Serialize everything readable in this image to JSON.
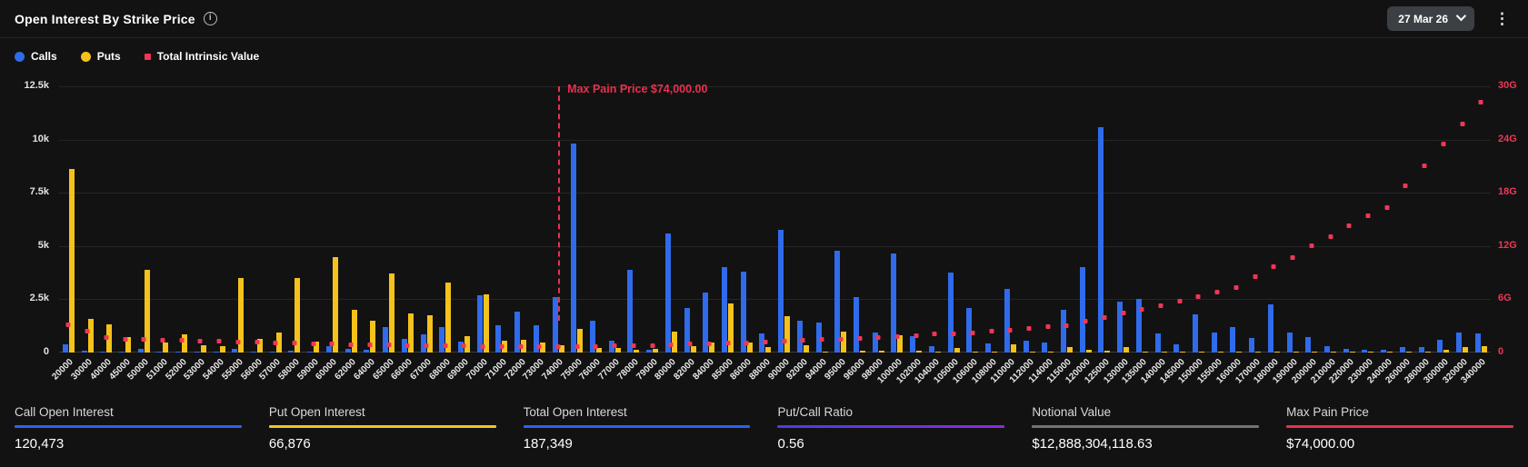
{
  "header": {
    "title": "Open Interest By Strike Price",
    "expiry_selected": "27 Mar 26"
  },
  "legend": [
    {
      "label": "Calls",
      "color": "#2f6beb",
      "shape": "circle"
    },
    {
      "label": "Puts",
      "color": "#f5c21b",
      "shape": "circle"
    },
    {
      "label": "Total Intrinsic Value",
      "color": "#ef3755",
      "shape": "square"
    }
  ],
  "chart_data": {
    "type": "bar",
    "title": "Open Interest By Strike Price",
    "categories": [
      "20000",
      "30000",
      "40000",
      "45000",
      "50000",
      "51000",
      "52000",
      "53000",
      "54000",
      "55000",
      "56000",
      "57000",
      "58000",
      "59000",
      "60000",
      "62000",
      "64000",
      "65000",
      "66000",
      "67000",
      "68000",
      "69000",
      "70000",
      "71000",
      "72000",
      "73000",
      "74000",
      "75000",
      "76000",
      "77000",
      "78000",
      "79000",
      "80000",
      "82000",
      "84000",
      "85000",
      "86000",
      "88000",
      "90000",
      "92000",
      "94000",
      "95000",
      "96000",
      "98000",
      "100000",
      "102000",
      "104000",
      "105000",
      "106000",
      "108000",
      "110000",
      "112000",
      "114000",
      "115000",
      "120000",
      "125000",
      "130000",
      "135000",
      "140000",
      "145000",
      "150000",
      "155000",
      "160000",
      "170000",
      "180000",
      "190000",
      "200000",
      "210000",
      "220000",
      "230000",
      "240000",
      "260000",
      "280000",
      "300000",
      "320000",
      "340000"
    ],
    "series": [
      {
        "name": "Calls",
        "type": "bar",
        "axis": "left",
        "color": "#2f6beb",
        "values": [
          400,
          100,
          50,
          60,
          150,
          30,
          40,
          30,
          40,
          150,
          50,
          60,
          100,
          40,
          300,
          150,
          120,
          1200,
          640,
          840,
          1200,
          500,
          2670,
          1290,
          1930,
          1290,
          2600,
          9800,
          1500,
          560,
          3900,
          130,
          5600,
          2100,
          2800,
          4000,
          3800,
          890,
          5770,
          1500,
          1410,
          4800,
          2600,
          930,
          4640,
          770,
          310,
          3770,
          2100,
          410,
          2990,
          560,
          460,
          1990,
          3990,
          10600,
          2400,
          2500,
          900,
          400,
          1800,
          960,
          1200,
          700,
          2250,
          920,
          740,
          310,
          170,
          130,
          140,
          260,
          260,
          590,
          940,
          900
        ]
      },
      {
        "name": "Puts",
        "type": "bar",
        "axis": "left",
        "color": "#f5c21b",
        "values": [
          8600,
          1580,
          1330,
          730,
          3900,
          470,
          860,
          360,
          320,
          3500,
          660,
          950,
          3500,
          500,
          4500,
          2000,
          1500,
          3700,
          1840,
          1740,
          3270,
          770,
          2740,
          570,
          600,
          460,
          360,
          1130,
          200,
          200,
          130,
          150,
          1000,
          310,
          490,
          2300,
          460,
          270,
          1700,
          360,
          60,
          1000,
          100,
          100,
          800,
          100,
          50,
          200,
          50,
          50,
          400,
          50,
          50,
          270,
          130,
          100,
          270,
          50,
          30,
          20,
          50,
          20,
          30,
          20,
          30,
          20,
          20,
          10,
          10,
          10,
          10,
          20,
          20,
          130,
          260,
          300
        ]
      },
      {
        "name": "Total Intrinsic Value",
        "type": "scatter",
        "axis": "right",
        "color": "#ef3755",
        "unit": "G",
        "values": [
          3.1,
          2.4,
          1.6,
          1.45,
          1.4,
          1.35,
          1.3,
          1.25,
          1.2,
          1.15,
          1.1,
          1.05,
          1.0,
          0.95,
          0.92,
          0.85,
          0.8,
          0.78,
          0.75,
          0.72,
          0.7,
          0.68,
          0.65,
          0.63,
          0.62,
          0.6,
          0.6,
          0.62,
          0.65,
          0.68,
          0.72,
          0.76,
          0.8,
          0.88,
          0.95,
          1.0,
          1.05,
          1.12,
          1.2,
          1.3,
          1.4,
          1.45,
          1.5,
          1.6,
          1.7,
          1.85,
          2.0,
          2.1,
          2.2,
          2.35,
          2.5,
          2.7,
          2.9,
          3.0,
          3.5,
          3.9,
          4.4,
          4.8,
          5.2,
          5.7,
          6.2,
          6.8,
          7.3,
          8.5,
          9.6,
          10.7,
          12.0,
          13.0,
          14.2,
          15.4,
          16.3,
          18.7,
          21.0,
          23.4,
          25.7,
          28.2
        ]
      }
    ],
    "left_axis": {
      "ticks": [
        "12.5k",
        "10k",
        "7.5k",
        "5k",
        "2.5k",
        "0"
      ],
      "max": 12500
    },
    "right_axis": {
      "ticks": [
        "30G",
        "24G",
        "18G",
        "12G",
        "6G",
        "0"
      ],
      "max_G": 30
    },
    "max_pain": {
      "label": "Max Pain Price $74,000.00",
      "strike": "74000"
    },
    "grid": true,
    "legend_position": "top-left"
  },
  "stats": [
    {
      "label": "Call Open Interest",
      "value": "120,473",
      "accent": "#2962ff"
    },
    {
      "label": "Put Open Interest",
      "value": "66,876",
      "accent": "#f5c21b"
    },
    {
      "label": "Total Open Interest",
      "value": "187,349",
      "accent": "#2962ff"
    },
    {
      "label": "Put/Call Ratio",
      "value": "0.56",
      "accent": "#4a3fe4",
      "accent2": "#8a2be2"
    },
    {
      "label": "Notional Value",
      "value": "$12,888,304,118.63",
      "accent": "#6f7378"
    },
    {
      "label": "Max Pain Price",
      "value": "$74,000.00",
      "accent": "#e8304f"
    }
  ]
}
